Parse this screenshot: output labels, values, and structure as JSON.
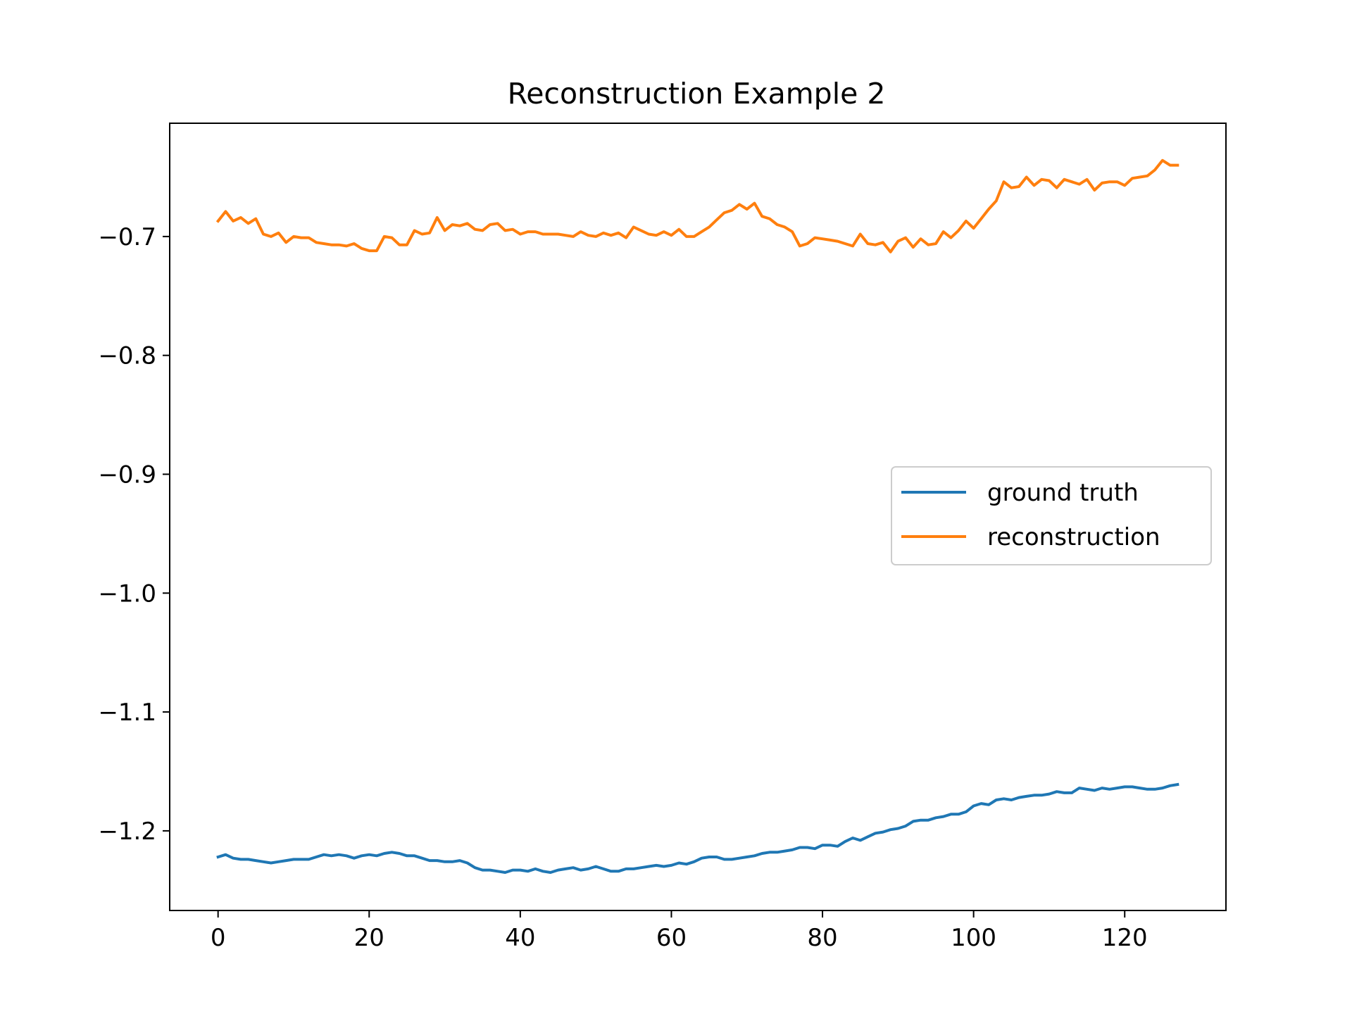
{
  "chart_data": {
    "type": "line",
    "title": "Reconstruction Example 2",
    "xlabel": "",
    "ylabel": "",
    "xlim": [
      -6.4,
      133.4
    ],
    "ylim": [
      -1.267,
      -0.6047
    ],
    "xticks": [
      0,
      20,
      40,
      60,
      80,
      100,
      120
    ],
    "xtick_labels": [
      "0",
      "20",
      "40",
      "60",
      "80",
      "100",
      "120"
    ],
    "yticks": [
      -0.7,
      -0.8,
      -0.9,
      -1.0,
      -1.1,
      -1.2
    ],
    "ytick_labels": [
      "−0.7",
      "−0.8",
      "−0.9",
      "−1.0",
      "−1.1",
      "−1.2"
    ],
    "grid": false,
    "legend_position": "center-right",
    "series": [
      {
        "name": "ground truth",
        "color": "#1f77b4",
        "x": [
          0,
          1,
          2,
          3,
          4,
          5,
          6,
          7,
          8,
          9,
          10,
          11,
          12,
          13,
          14,
          15,
          16,
          17,
          18,
          19,
          20,
          21,
          22,
          23,
          24,
          25,
          26,
          27,
          28,
          29,
          30,
          31,
          32,
          33,
          34,
          35,
          36,
          37,
          38,
          39,
          40,
          41,
          42,
          43,
          44,
          45,
          46,
          47,
          48,
          49,
          50,
          51,
          52,
          53,
          54,
          55,
          56,
          57,
          58,
          59,
          60,
          61,
          62,
          63,
          64,
          65,
          66,
          67,
          68,
          69,
          70,
          71,
          72,
          73,
          74,
          75,
          76,
          77,
          78,
          79,
          80,
          81,
          82,
          83,
          84,
          85,
          86,
          87,
          88,
          89,
          90,
          91,
          92,
          93,
          94,
          95,
          96,
          97,
          98,
          99,
          100,
          101,
          102,
          103,
          104,
          105,
          106,
          107,
          108,
          109,
          110,
          111,
          112,
          113,
          114,
          115,
          116,
          117,
          118,
          119,
          120,
          121,
          122,
          123,
          124,
          125,
          126,
          127
        ],
        "values": [
          -1.222,
          -1.22,
          -1.223,
          -1.224,
          -1.224,
          -1.225,
          -1.226,
          -1.227,
          -1.226,
          -1.225,
          -1.224,
          -1.224,
          -1.224,
          -1.222,
          -1.22,
          -1.221,
          -1.22,
          -1.221,
          -1.223,
          -1.221,
          -1.22,
          -1.221,
          -1.219,
          -1.218,
          -1.219,
          -1.221,
          -1.221,
          -1.223,
          -1.225,
          -1.225,
          -1.226,
          -1.226,
          -1.225,
          -1.227,
          -1.231,
          -1.233,
          -1.233,
          -1.234,
          -1.235,
          -1.233,
          -1.233,
          -1.234,
          -1.232,
          -1.234,
          -1.235,
          -1.233,
          -1.232,
          -1.231,
          -1.233,
          -1.232,
          -1.23,
          -1.232,
          -1.234,
          -1.234,
          -1.232,
          -1.232,
          -1.231,
          -1.23,
          -1.229,
          -1.23,
          -1.229,
          -1.227,
          -1.228,
          -1.226,
          -1.223,
          -1.222,
          -1.222,
          -1.224,
          -1.224,
          -1.223,
          -1.222,
          -1.221,
          -1.219,
          -1.218,
          -1.218,
          -1.217,
          -1.216,
          -1.214,
          -1.214,
          -1.215,
          -1.212,
          -1.212,
          -1.213,
          -1.209,
          -1.206,
          -1.208,
          -1.205,
          -1.202,
          -1.201,
          -1.199,
          -1.198,
          -1.196,
          -1.192,
          -1.191,
          -1.191,
          -1.189,
          -1.188,
          -1.186,
          -1.186,
          -1.184,
          -1.179,
          -1.177,
          -1.178,
          -1.174,
          -1.173,
          -1.174,
          -1.172,
          -1.171,
          -1.17,
          -1.17,
          -1.169,
          -1.167,
          -1.168,
          -1.168,
          -1.164,
          -1.165,
          -1.166,
          -1.164,
          -1.165,
          -1.164,
          -1.163,
          -1.163,
          -1.164,
          -1.165,
          -1.165,
          -1.164,
          -1.162,
          -1.161
        ]
      },
      {
        "name": "reconstruction",
        "color": "#ff7f0e",
        "x": [
          0,
          1,
          2,
          3,
          4,
          5,
          6,
          7,
          8,
          9,
          10,
          11,
          12,
          13,
          14,
          15,
          16,
          17,
          18,
          19,
          20,
          21,
          22,
          23,
          24,
          25,
          26,
          27,
          28,
          29,
          30,
          31,
          32,
          33,
          34,
          35,
          36,
          37,
          38,
          39,
          40,
          41,
          42,
          43,
          44,
          45,
          46,
          47,
          48,
          49,
          50,
          51,
          52,
          53,
          54,
          55,
          56,
          57,
          58,
          59,
          60,
          61,
          62,
          63,
          64,
          65,
          66,
          67,
          68,
          69,
          70,
          71,
          72,
          73,
          74,
          75,
          76,
          77,
          78,
          79,
          80,
          81,
          82,
          83,
          84,
          85,
          86,
          87,
          88,
          89,
          90,
          91,
          92,
          93,
          94,
          95,
          96,
          97,
          98,
          99,
          100,
          101,
          102,
          103,
          104,
          105,
          106,
          107,
          108,
          109,
          110,
          111,
          112,
          113,
          114,
          115,
          116,
          117,
          118,
          119,
          120,
          121,
          122,
          123,
          124,
          125,
          126,
          127
        ],
        "values": [
          -0.687,
          -0.679,
          -0.687,
          -0.684,
          -0.689,
          -0.685,
          -0.698,
          -0.7,
          -0.697,
          -0.705,
          -0.7,
          -0.701,
          -0.701,
          -0.705,
          -0.706,
          -0.707,
          -0.707,
          -0.708,
          -0.706,
          -0.71,
          -0.712,
          -0.712,
          -0.7,
          -0.701,
          -0.707,
          -0.707,
          -0.695,
          -0.698,
          -0.697,
          -0.684,
          -0.695,
          -0.69,
          -0.691,
          -0.689,
          -0.694,
          -0.695,
          -0.69,
          -0.689,
          -0.695,
          -0.694,
          -0.698,
          -0.696,
          -0.696,
          -0.698,
          -0.698,
          -0.698,
          -0.699,
          -0.7,
          -0.696,
          -0.699,
          -0.7,
          -0.697,
          -0.699,
          -0.697,
          -0.701,
          -0.692,
          -0.695,
          -0.698,
          -0.699,
          -0.696,
          -0.699,
          -0.694,
          -0.7,
          -0.7,
          -0.696,
          -0.692,
          -0.686,
          -0.68,
          -0.678,
          -0.673,
          -0.677,
          -0.672,
          -0.683,
          -0.685,
          -0.69,
          -0.692,
          -0.696,
          -0.708,
          -0.706,
          -0.701,
          -0.702,
          -0.703,
          -0.704,
          -0.706,
          -0.708,
          -0.698,
          -0.706,
          -0.707,
          -0.705,
          -0.713,
          -0.704,
          -0.701,
          -0.709,
          -0.702,
          -0.707,
          -0.706,
          -0.696,
          -0.701,
          -0.695,
          -0.687,
          -0.693,
          -0.685,
          -0.677,
          -0.67,
          -0.654,
          -0.659,
          -0.658,
          -0.65,
          -0.657,
          -0.652,
          -0.653,
          -0.659,
          -0.652,
          -0.654,
          -0.656,
          -0.652,
          -0.661,
          -0.655,
          -0.654,
          -0.654,
          -0.657,
          -0.651,
          -0.65,
          -0.649,
          -0.644,
          -0.636,
          -0.64,
          -0.64
        ]
      }
    ]
  }
}
